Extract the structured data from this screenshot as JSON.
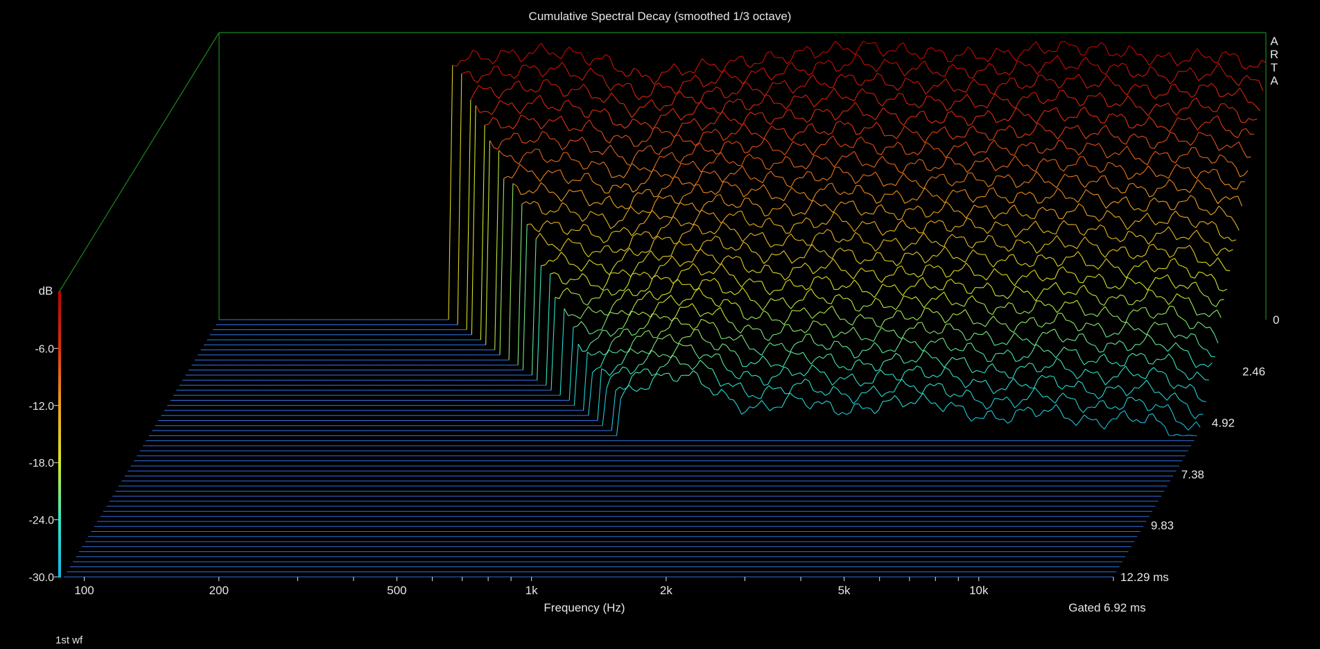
{
  "chart_data": {
    "type": "waterfall",
    "title": "Cumulative Spectral Decay (smoothed 1/3 octave)",
    "logo": "ARTA",
    "xlabel": "Frequency (Hz)",
    "x_scale": "log",
    "xlim": [
      90,
      20000
    ],
    "x_ticks": [
      {
        "value": 100,
        "label": "100"
      },
      {
        "value": 200,
        "label": "200"
      },
      {
        "value": 500,
        "label": "500"
      },
      {
        "value": 1000,
        "label": "1k"
      },
      {
        "value": 2000,
        "label": "2k"
      },
      {
        "value": 5000,
        "label": "5k"
      },
      {
        "value": 10000,
        "label": "10k"
      }
    ],
    "zlabel": "dB",
    "zlim": [
      -30,
      0
    ],
    "z_ticks": [
      "-6.0",
      "-12.0",
      "-18.0",
      "-24.0",
      "-30.0"
    ],
    "t_ticks": [
      {
        "value": 0,
        "label": "0"
      },
      {
        "value": 2.46,
        "label": "2.46"
      },
      {
        "value": 4.92,
        "label": "4.92"
      },
      {
        "value": 7.38,
        "label": "7.38"
      },
      {
        "value": 9.83,
        "label": "9.83"
      },
      {
        "value": 12.29,
        "label": "12.29 ms"
      }
    ],
    "t_range_ms": [
      0,
      12.29
    ],
    "slice_count": 52,
    "gate_label": "Gated 6.92 ms",
    "footer_label": "1st wf",
    "colors": {
      "background": "#000000",
      "frame": "#1a8a1a",
      "floor_lines": "#2f6fe0",
      "colormap": [
        "#10b8e8",
        "#30e8c8",
        "#d8e820",
        "#f0a020",
        "#e03010",
        "#c00000"
      ]
    },
    "surface_profile": {
      "freq": [
        300,
        400,
        500,
        650,
        800,
        1000,
        1200,
        1500,
        2000,
        2500,
        3000,
        4000,
        5000,
        7000,
        9000,
        12000,
        16000,
        20000
      ],
      "level_db": [
        -2,
        -1.5,
        -1,
        -2,
        -4,
        -3,
        -2.5,
        -2,
        -1,
        -0.5,
        -1,
        -1.5,
        -1.5,
        -0.5,
        -1,
        -2,
        -1.5,
        -3
      ],
      "low_cutoff_hz": 300
    },
    "decay_resonances": [
      {
        "freq": 1100,
        "width_oct": 0.55,
        "level_db": 7
      },
      {
        "freq": 1500,
        "width_oct": 0.35,
        "level_db": 5
      },
      {
        "freq": 2600,
        "width_oct": 0.4,
        "level_db": 4
      },
      {
        "freq": 4000,
        "width_oct": 0.3,
        "level_db": 3
      },
      {
        "freq": 5200,
        "width_oct": 0.35,
        "level_db": 4
      },
      {
        "freq": 9000,
        "width_oct": 0.3,
        "level_db": 3
      },
      {
        "freq": 14000,
        "width_oct": 0.4,
        "level_db": 3
      }
    ]
  }
}
